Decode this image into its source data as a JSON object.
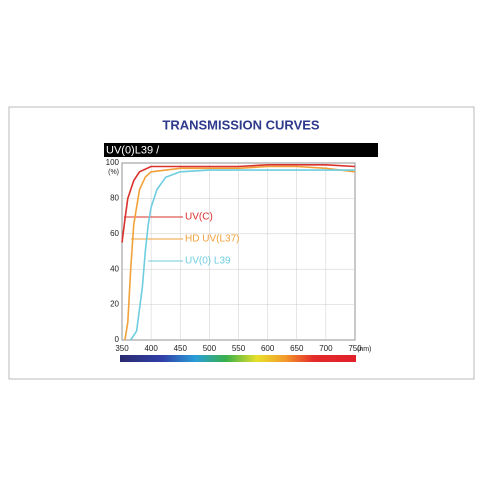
{
  "chart_data": {
    "type": "line",
    "title": "TRANSMISSION CURVES",
    "subtitle": "UV(0)L39 /",
    "y_unit": "(%)",
    "x_unit": "(nm)",
    "xlim": [
      350,
      750
    ],
    "xticks": [
      350,
      400,
      450,
      500,
      550,
      600,
      650,
      700,
      750
    ],
    "ylim": [
      0,
      100
    ],
    "yticks": [
      0,
      20,
      40,
      60,
      80,
      100
    ],
    "grid": true,
    "series": [
      {
        "name": "UV(C)",
        "color": "#d9312b",
        "x": [
          350,
          355,
          360,
          370,
          380,
          400,
          450,
          500,
          550,
          600,
          650,
          700,
          750
        ],
        "values": [
          55,
          68,
          80,
          90,
          95,
          98,
          98,
          98,
          98,
          99,
          99,
          99,
          98
        ]
      },
      {
        "name": "HD UV(L37)",
        "color": "#f2a13a",
        "x": [
          355,
          360,
          365,
          370,
          380,
          390,
          400,
          450,
          500,
          550,
          600,
          650,
          700,
          750
        ],
        "values": [
          0,
          10,
          40,
          65,
          85,
          92,
          95,
          97,
          97,
          97,
          98,
          98,
          97,
          95
        ]
      },
      {
        "name": "UV(0) L39",
        "color": "#6fcde0",
        "x": [
          365,
          375,
          385,
          390,
          395,
          400,
          410,
          425,
          450,
          500,
          600,
          700,
          750
        ],
        "values": [
          0,
          5,
          30,
          50,
          65,
          75,
          85,
          92,
          95,
          96,
          96,
          96,
          96
        ]
      }
    ]
  }
}
